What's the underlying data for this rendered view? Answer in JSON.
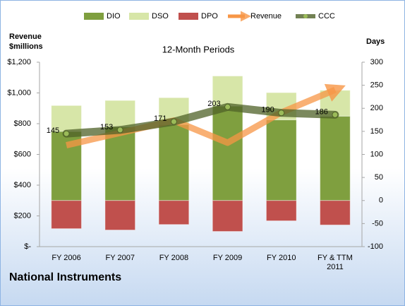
{
  "chart_data": {
    "type": "bar",
    "title": "12-Month Periods",
    "footer": "National Instruments",
    "ylabel": "Revenue $millions",
    "y2label": "Days",
    "categories": [
      "FY 2006",
      "FY 2007",
      "FY 2008",
      "FY 2009",
      "FY 2010",
      "FY & TTM 2011"
    ],
    "series": [
      {
        "name": "DIO",
        "type": "bar",
        "axis": "y2",
        "color": "#7f9f3f",
        "values": [
          150,
          160,
          165,
          205,
          175,
          183
        ]
      },
      {
        "name": "DSO",
        "type": "bar",
        "axis": "y2",
        "color": "#d7e6a8",
        "values": [
          56,
          57,
          58,
          65,
          59,
          56
        ]
      },
      {
        "name": "DPO",
        "type": "bar",
        "axis": "y2",
        "color": "#c0504d",
        "values": [
          -61,
          -64,
          -52,
          -67,
          -44,
          -53
        ]
      },
      {
        "name": "Revenue",
        "type": "line",
        "axis": "y",
        "color": "#f79646",
        "values": [
          660,
          740,
          820,
          676,
          873,
          1020
        ]
      },
      {
        "name": "CCC",
        "type": "line",
        "axis": "y2",
        "color": "#4f6228",
        "values": [
          145,
          153,
          171,
          203,
          190,
          186
        ]
      }
    ],
    "ylim": [
      0,
      1200
    ],
    "yticks": [
      {
        "value": 0,
        "label": "$-"
      },
      {
        "value": 200,
        "label": "$200"
      },
      {
        "value": 400,
        "label": "$400"
      },
      {
        "value": 600,
        "label": "$600"
      },
      {
        "value": 800,
        "label": "$800"
      },
      {
        "value": 1000,
        "label": "$1,000"
      },
      {
        "value": 1200,
        "label": "$1,200"
      }
    ],
    "y2lim": [
      -100,
      300
    ],
    "y2ticks": [
      -100,
      -50,
      0,
      50,
      100,
      150,
      200,
      250,
      300
    ],
    "legend": "top",
    "grid": false
  }
}
